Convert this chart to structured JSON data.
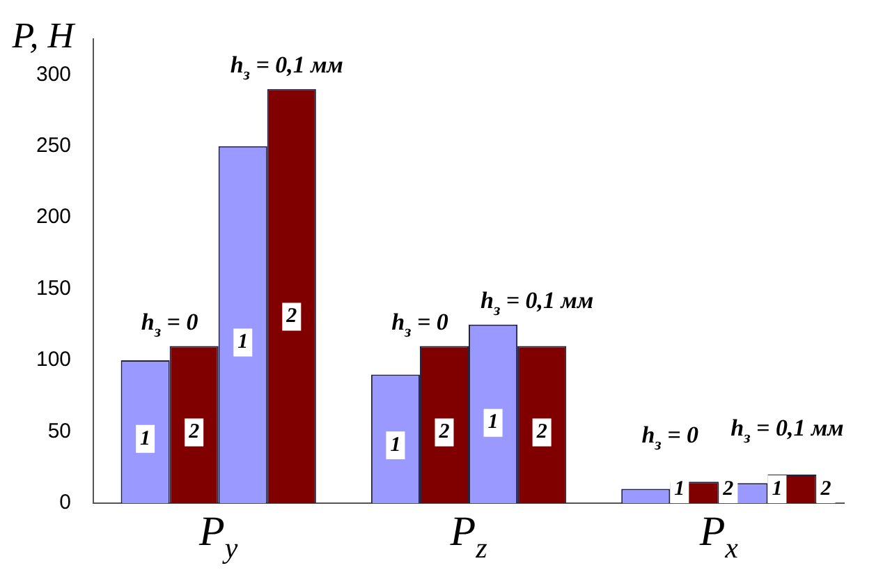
{
  "chart_data": {
    "type": "bar",
    "ylabel": "P, H",
    "categories": [
      "P$_{y}$",
      "P$_{z}$",
      "P$_{x}$"
    ],
    "series": [
      {
        "name": "1",
        "color": "#9999ff",
        "values": [
          100,
          90,
          10
        ]
      },
      {
        "name": "2",
        "color": "#800000",
        "values": [
          110,
          110,
          15
        ]
      },
      {
        "name": "1",
        "color": "#9999ff",
        "values": [
          250,
          125,
          14
        ]
      },
      {
        "name": "2",
        "color": "#800000",
        "values": [
          290,
          110,
          20
        ]
      }
    ],
    "ylim": [
      0,
      325
    ],
    "yticks": [
      0,
      50,
      100,
      150,
      200,
      250,
      300
    ],
    "grid": false,
    "legend": false,
    "annotations": [
      "h$_{з}$ = 0",
      "h$_{з}$ = 0,1 мм",
      "h$_{з}$ = 0",
      "h$_{з}$ = 0,1 мм",
      "h$_{з}$ = 0",
      "h$_{з}$ = 0,1 мм"
    ]
  }
}
